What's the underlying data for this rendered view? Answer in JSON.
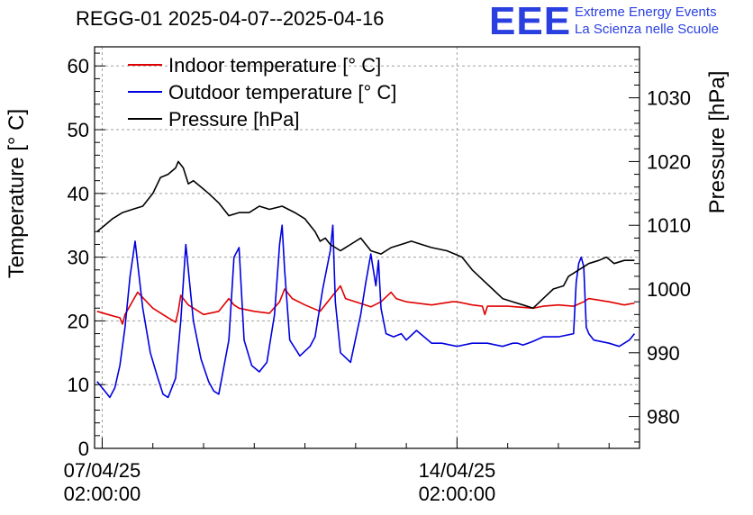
{
  "title": "REGG-01 2025-04-07--2025-04-16",
  "logo": {
    "mark": "EEE",
    "line1": "Extreme Energy Events",
    "line2": "La Scienza nelle Scuole",
    "color": "#2a3fe0"
  },
  "chart_data": {
    "type": "line",
    "title": "REGG-01 2025-04-07--2025-04-16",
    "xlabel": "",
    "ylabel": "Temperature [° C]",
    "y2label": "Pressure [hPa]",
    "x_unit": "days since 2025-04-07 02:00:00",
    "xlim": [
      -0.15,
      10.6
    ],
    "ylim": [
      0,
      63
    ],
    "y2lim": [
      975,
      1038
    ],
    "x_ticks": [
      {
        "x": 0,
        "line1": "07/04/25",
        "line2": "02:00:00"
      },
      {
        "x": 7,
        "line1": "14/04/25",
        "line2": "02:00:00"
      }
    ],
    "y_ticks": [
      0,
      10,
      20,
      30,
      40,
      50,
      60
    ],
    "y2_ticks": [
      980,
      990,
      1000,
      1010,
      1020,
      1030
    ],
    "grid": true,
    "legend_position": "top-left",
    "series": [
      {
        "name": "Indoor temperature [° C]",
        "axis": "left",
        "color": "#e00000",
        "x": [
          -0.1,
          0.2,
          0.35,
          0.4,
          0.45,
          0.7,
          1.0,
          1.3,
          1.45,
          1.5,
          1.55,
          1.7,
          2.0,
          2.3,
          2.5,
          2.6,
          2.7,
          3.0,
          3.3,
          3.5,
          3.6,
          3.75,
          4.0,
          4.3,
          4.5,
          4.7,
          4.8,
          5.0,
          5.3,
          5.5,
          5.7,
          5.8,
          6.0,
          6.5,
          6.9,
          7.0,
          7.3,
          7.5,
          7.55,
          7.6,
          8.0,
          8.5,
          8.7,
          9.0,
          9.3,
          9.5,
          9.6,
          10.0,
          10.3,
          10.5
        ],
        "values": [
          21.5,
          20.8,
          20.5,
          19.5,
          21.0,
          24.5,
          22.0,
          20.5,
          19.8,
          21.5,
          24.0,
          22.5,
          21.0,
          21.5,
          23.5,
          22.5,
          22.0,
          21.5,
          21.2,
          23.0,
          25.0,
          23.5,
          22.5,
          21.5,
          23.5,
          25.5,
          23.5,
          23.0,
          22.2,
          23.0,
          24.5,
          23.5,
          23.0,
          22.5,
          23.0,
          23.0,
          22.5,
          22.3,
          21.0,
          22.3,
          22.3,
          22.0,
          22.3,
          22.5,
          22.3,
          23.0,
          23.5,
          23.0,
          22.5,
          22.8
        ]
      },
      {
        "name": "Outdoor temperature [° C]",
        "axis": "left",
        "color": "#0000e0",
        "x": [
          -0.1,
          0.05,
          0.15,
          0.25,
          0.35,
          0.45,
          0.55,
          0.65,
          0.8,
          0.95,
          1.1,
          1.2,
          1.3,
          1.45,
          1.55,
          1.65,
          1.8,
          1.95,
          2.1,
          2.2,
          2.3,
          2.5,
          2.6,
          2.7,
          2.8,
          2.95,
          3.1,
          3.25,
          3.4,
          3.5,
          3.55,
          3.6,
          3.7,
          3.9,
          4.1,
          4.2,
          4.35,
          4.5,
          4.55,
          4.6,
          4.7,
          4.9,
          5.1,
          5.2,
          5.3,
          5.4,
          5.45,
          5.5,
          5.6,
          5.75,
          5.9,
          6.0,
          6.2,
          6.5,
          6.7,
          7.0,
          7.3,
          7.6,
          7.9,
          8.1,
          8.2,
          8.3,
          8.4,
          8.5,
          8.7,
          9.0,
          9.3,
          9.35,
          9.4,
          9.45,
          9.5,
          9.55,
          9.6,
          9.7,
          10.0,
          10.2,
          10.4,
          10.5
        ],
        "values": [
          10.5,
          9.0,
          8.0,
          9.5,
          13.0,
          19.0,
          27.0,
          32.5,
          22.0,
          15.0,
          11.0,
          8.5,
          8.0,
          11.0,
          20.0,
          32.0,
          20.0,
          14.0,
          10.5,
          9.0,
          8.5,
          17.0,
          30.0,
          31.5,
          17.0,
          13.0,
          12.0,
          13.5,
          21.0,
          32.0,
          35.0,
          28.0,
          17.0,
          14.5,
          16.0,
          17.5,
          25.0,
          31.0,
          35.0,
          23.0,
          15.0,
          13.5,
          21.0,
          26.0,
          30.5,
          25.5,
          29.5,
          22.0,
          18.0,
          17.5,
          18.0,
          17.0,
          18.5,
          16.5,
          16.5,
          16.0,
          16.5,
          16.5,
          16.0,
          16.5,
          16.5,
          16.2,
          16.5,
          16.8,
          17.5,
          17.5,
          18.0,
          26.0,
          29.0,
          30.0,
          28.5,
          19.0,
          18.0,
          17.0,
          16.5,
          16.0,
          17.0,
          18.0
        ]
      },
      {
        "name": "Pressure [hPa]",
        "axis": "right",
        "color": "#000000",
        "x": [
          -0.1,
          0.05,
          0.2,
          0.4,
          0.6,
          0.8,
          1.0,
          1.15,
          1.3,
          1.45,
          1.5,
          1.6,
          1.7,
          1.8,
          1.95,
          2.1,
          2.3,
          2.5,
          2.7,
          2.9,
          3.1,
          3.3,
          3.55,
          3.8,
          4.0,
          4.2,
          4.3,
          4.4,
          4.5,
          4.7,
          4.9,
          5.1,
          5.3,
          5.5,
          5.7,
          5.9,
          6.1,
          6.3,
          6.5,
          6.8,
          7.1,
          7.3,
          7.5,
          7.7,
          7.9,
          8.1,
          8.3,
          8.5,
          8.7,
          8.9,
          9.1,
          9.2,
          9.4,
          9.6,
          9.8,
          9.95,
          10.1,
          10.3,
          10.5
        ],
        "values": [
          1009.0,
          1010.0,
          1011.0,
          1012.0,
          1012.5,
          1013.0,
          1015.0,
          1017.5,
          1018.0,
          1019.0,
          1020.0,
          1019.0,
          1016.5,
          1017.0,
          1016.0,
          1015.0,
          1013.5,
          1011.5,
          1012.0,
          1012.0,
          1013.0,
          1012.5,
          1013.0,
          1012.0,
          1011.0,
          1009.0,
          1007.5,
          1008.0,
          1007.0,
          1006.0,
          1007.0,
          1008.0,
          1006.0,
          1005.5,
          1006.5,
          1007.0,
          1007.5,
          1007.0,
          1006.5,
          1006.0,
          1005.0,
          1003.0,
          1001.5,
          1000.0,
          998.5,
          998.0,
          997.5,
          997.0,
          998.5,
          1000.0,
          1000.5,
          1002.0,
          1003.0,
          1004.0,
          1004.5,
          1005.0,
          1004.0,
          1004.5,
          1004.5
        ]
      }
    ]
  }
}
